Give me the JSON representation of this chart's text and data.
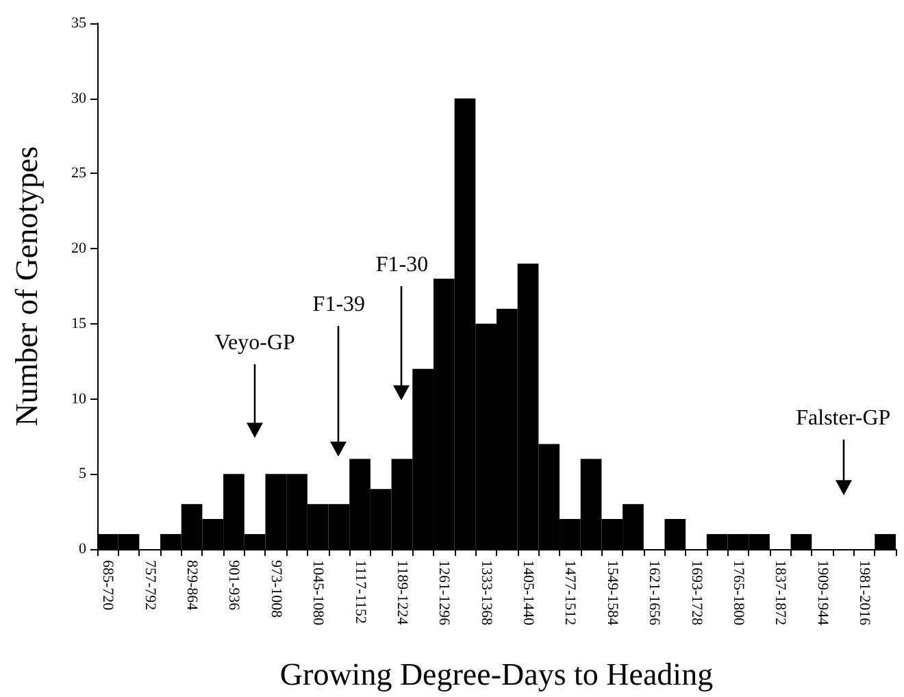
{
  "chart_data": {
    "type": "bar",
    "xlabel": "Growing Degree-Days to Heading",
    "ylabel": "Number of Genotypes",
    "categories": [
      "685-720",
      null,
      "757-792",
      null,
      "829-864",
      null,
      "901-936",
      null,
      "973-1008",
      null,
      "1045-1080",
      null,
      "1117-1152",
      null,
      "1189-1224",
      null,
      "1261-1296",
      null,
      "1333-1368",
      null,
      "1405-1440",
      null,
      "1477-1512",
      null,
      "1549-1584",
      null,
      "1621-1656",
      null,
      "1693-1728",
      null,
      "1765-1800",
      null,
      "1837-1872",
      null,
      "1909-1944",
      null,
      "1981-2016",
      null
    ],
    "values": [
      1,
      1,
      0,
      1,
      3,
      2,
      5,
      1,
      5,
      5,
      3,
      3,
      6,
      4,
      6,
      12,
      18,
      30,
      15,
      16,
      19,
      7,
      2,
      6,
      2,
      3,
      0,
      2,
      0,
      1,
      1,
      1,
      0,
      1,
      0,
      0,
      0,
      1
    ],
    "color": "#000000",
    "ylim": [
      0,
      35
    ],
    "yticks": [
      0,
      5,
      10,
      15,
      20,
      25,
      30,
      35
    ],
    "annotations": [
      "Veyo-GP",
      "F1-39",
      "F1-30",
      "Falster-GP"
    ]
  }
}
